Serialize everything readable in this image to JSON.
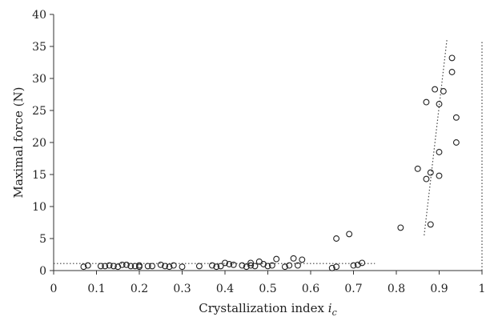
{
  "chart_data": {
    "type": "scatter",
    "title": "",
    "xlabel": "Crystallization index ",
    "xlabel_symbol": "i",
    "xlabel_subscript": "c",
    "ylabel": "Maximal force (N)",
    "xlim": [
      0,
      1
    ],
    "ylim": [
      0,
      40
    ],
    "xticks": [
      "0",
      "0.1",
      "0.2",
      "0.3",
      "0.4",
      "0.5",
      "0.6",
      "0.7",
      "0.8",
      "0.9",
      "1"
    ],
    "yticks": [
      "0",
      "5",
      "10",
      "15",
      "20",
      "25",
      "30",
      "35",
      "40"
    ],
    "grid": false,
    "marker": "open-circle",
    "series": [
      {
        "points": [
          [
            0.07,
            0.6
          ],
          [
            0.08,
            0.8
          ],
          [
            0.11,
            0.7
          ],
          [
            0.12,
            0.7
          ],
          [
            0.13,
            0.8
          ],
          [
            0.14,
            0.7
          ],
          [
            0.15,
            0.6
          ],
          [
            0.16,
            0.9
          ],
          [
            0.17,
            0.9
          ],
          [
            0.18,
            0.7
          ],
          [
            0.19,
            0.7
          ],
          [
            0.2,
            0.6
          ],
          [
            0.2,
            0.8
          ],
          [
            0.22,
            0.7
          ],
          [
            0.23,
            0.7
          ],
          [
            0.25,
            0.9
          ],
          [
            0.26,
            0.7
          ],
          [
            0.27,
            0.6
          ],
          [
            0.28,
            0.8
          ],
          [
            0.3,
            0.6
          ],
          [
            0.34,
            0.7
          ],
          [
            0.37,
            0.8
          ],
          [
            0.38,
            0.6
          ],
          [
            0.39,
            0.7
          ],
          [
            0.4,
            1.2
          ],
          [
            0.41,
            1.0
          ],
          [
            0.42,
            0.9
          ],
          [
            0.44,
            0.8
          ],
          [
            0.45,
            0.6
          ],
          [
            0.46,
            1.2
          ],
          [
            0.46,
            0.8
          ],
          [
            0.47,
            0.7
          ],
          [
            0.48,
            1.4
          ],
          [
            0.49,
            1.0
          ],
          [
            0.5,
            0.7
          ],
          [
            0.51,
            0.8
          ],
          [
            0.52,
            1.8
          ],
          [
            0.54,
            0.6
          ],
          [
            0.55,
            0.8
          ],
          [
            0.56,
            1.9
          ],
          [
            0.57,
            0.8
          ],
          [
            0.58,
            1.7
          ],
          [
            0.65,
            0.4
          ],
          [
            0.66,
            0.6
          ],
          [
            0.66,
            5.0
          ],
          [
            0.69,
            5.7
          ],
          [
            0.7,
            0.8
          ],
          [
            0.71,
            0.9
          ],
          [
            0.72,
            1.2
          ],
          [
            0.81,
            6.7
          ],
          [
            0.85,
            15.9
          ],
          [
            0.87,
            14.3
          ],
          [
            0.87,
            26.3
          ],
          [
            0.88,
            15.3
          ],
          [
            0.88,
            7.2
          ],
          [
            0.89,
            28.3
          ],
          [
            0.9,
            14.8
          ],
          [
            0.9,
            26.0
          ],
          [
            0.9,
            18.5
          ],
          [
            0.91,
            28.0
          ],
          [
            0.93,
            33.2
          ],
          [
            0.93,
            31.0
          ],
          [
            0.94,
            23.9
          ],
          [
            0.94,
            20.0
          ]
        ]
      }
    ],
    "trend_lines": [
      {
        "style": "dotted",
        "from": [
          0,
          1.1
        ],
        "to": [
          0.75,
          1.1
        ]
      },
      {
        "style": "dotted",
        "from": [
          0.865,
          5.5
        ],
        "to": [
          0.918,
          36.0
        ]
      },
      {
        "style": "dotted",
        "from": [
          1.0,
          0
        ],
        "to": [
          1.0,
          36.0
        ]
      }
    ]
  }
}
